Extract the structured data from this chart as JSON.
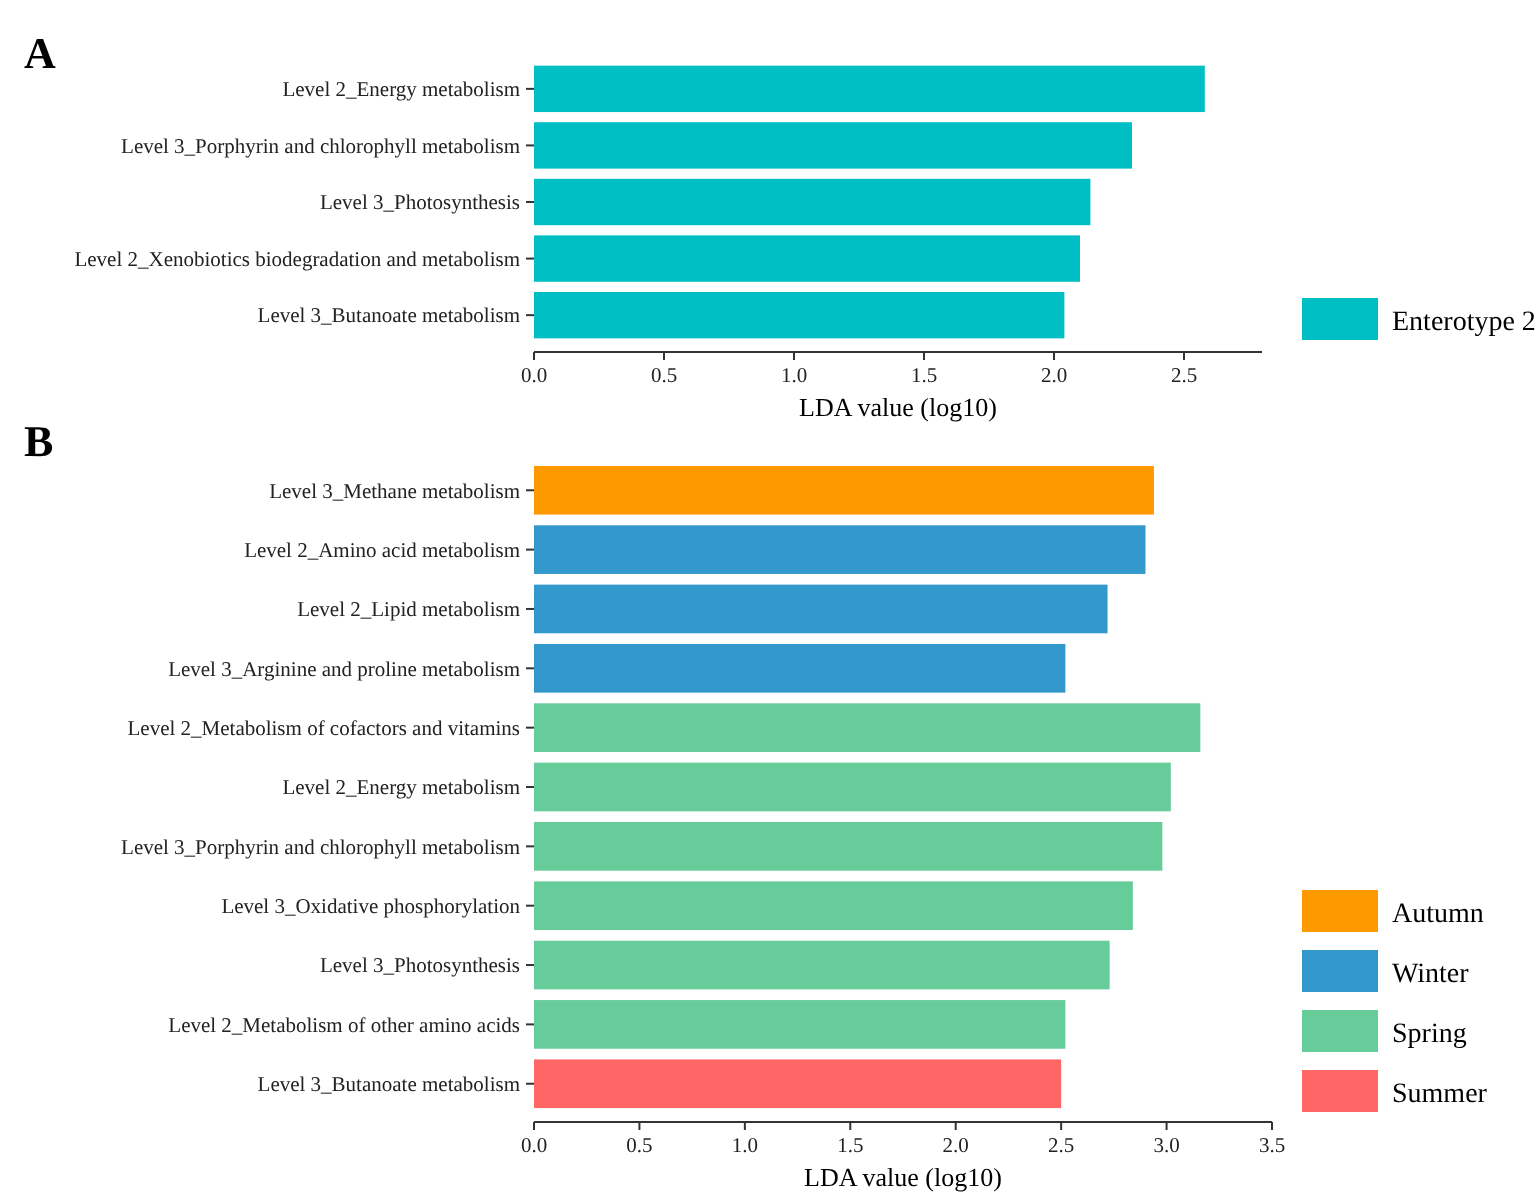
{
  "chart_data": [
    {
      "type": "bar",
      "title": "A",
      "orientation": "horizontal",
      "categories": [
        "Level 2_Energy metabolism",
        "Level 3_Porphyrin and chlorophyll metabolism",
        "Level 3_Photosynthesis",
        "Level 2_Xenobiotics biodegradation and metabolism",
        "Level 3_Butanoate metabolism"
      ],
      "xlabel": "LDA value (log10)",
      "xlim": [
        0,
        2.8
      ],
      "xticks": [
        {
          "value": 0,
          "label": "0.0"
        },
        {
          "value": 0.5,
          "label": "0.5"
        },
        {
          "value": 1,
          "label": "1.0"
        },
        {
          "value": 1.5,
          "label": "1.5"
        },
        {
          "value": 2,
          "label": "2.0"
        },
        {
          "value": 2.5,
          "label": "2.5"
        }
      ],
      "legend": "right",
      "grid": false,
      "series": [
        {
          "name": "Enterotype 2",
          "color": "#00bfc4",
          "values": [
            2.58,
            2.3,
            2.14,
            2.1,
            2.04
          ]
        }
      ]
    },
    {
      "type": "bar",
      "title": "B",
      "orientation": "horizontal",
      "categories": [
        "Level 3_Methane metabolism",
        "Level 2_Amino acid metabolism",
        "Level 2_Lipid metabolism",
        "Level 3_Arginine and proline metabolism",
        "Level 2_Metabolism of cofactors and vitamins",
        "Level 2_Energy metabolism",
        "Level 3_Porphyrin and chlorophyll metabolism",
        "Level 3_Oxidative phosphorylation",
        "Level 3_Photosynthesis",
        "Level 2_Metabolism of other amino acids",
        "Level 3_Butanoate metabolism"
      ],
      "xlabel": "LDA value (log10)",
      "xlim": [
        0,
        3.5
      ],
      "xticks": [
        {
          "value": 0,
          "label": "0.0"
        },
        {
          "value": 0.5,
          "label": "0.5"
        },
        {
          "value": 1,
          "label": "1.0"
        },
        {
          "value": 1.5,
          "label": "1.5"
        },
        {
          "value": 2,
          "label": "2.0"
        },
        {
          "value": 2.5,
          "label": "2.5"
        },
        {
          "value": 3,
          "label": "3.0"
        },
        {
          "value": 3.5,
          "label": "3.5"
        }
      ],
      "legend": "right",
      "grid": false,
      "series": [
        {
          "name": "Autumn",
          "color": "#ff9900",
          "values": [
            2.94,
            null,
            null,
            null,
            null,
            null,
            null,
            null,
            null,
            null,
            null
          ]
        },
        {
          "name": "Winter",
          "color": "#3399cc",
          "values": [
            null,
            2.9,
            2.72,
            2.52,
            null,
            null,
            null,
            null,
            null,
            null,
            null
          ]
        },
        {
          "name": "Spring",
          "color": "#66cc99",
          "values": [
            null,
            null,
            null,
            null,
            3.16,
            3.02,
            2.98,
            2.84,
            2.73,
            2.52,
            null
          ]
        },
        {
          "name": "Summer",
          "color": "#ff6666",
          "values": [
            null,
            null,
            null,
            null,
            null,
            null,
            null,
            null,
            null,
            null,
            2.5
          ]
        }
      ]
    }
  ]
}
